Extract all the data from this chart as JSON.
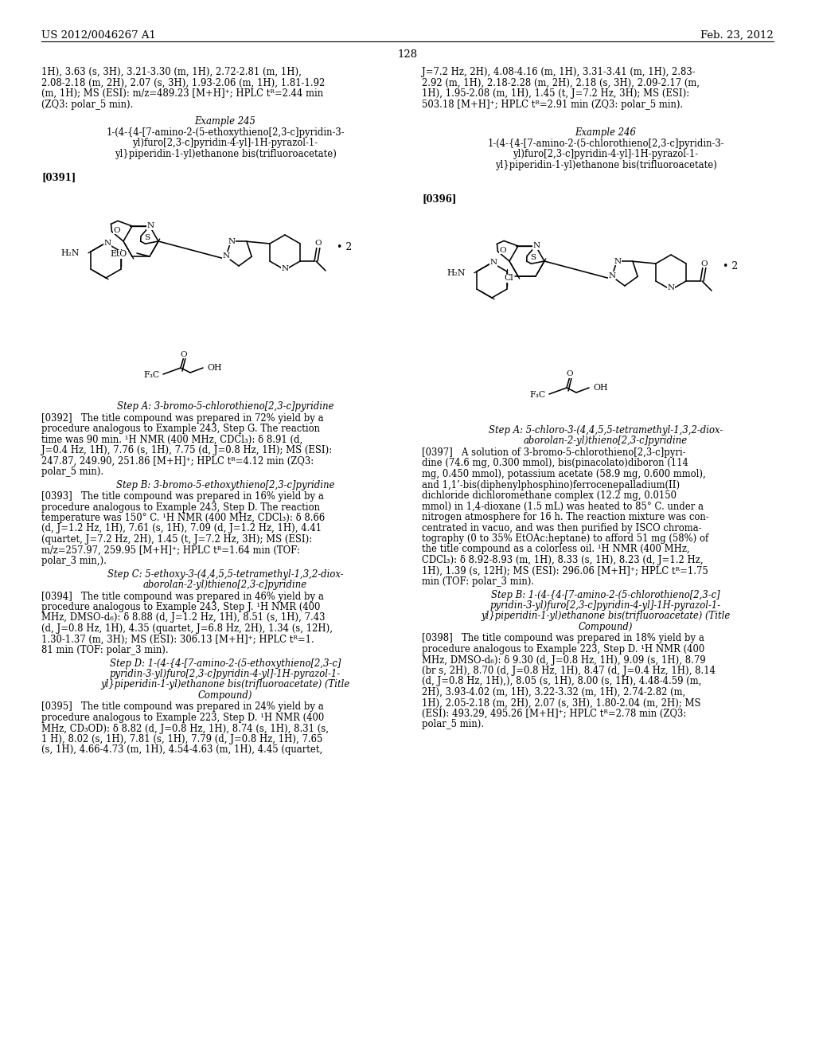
{
  "page_number": "128",
  "header_left": "US 2012/0046267 A1",
  "header_right": "Feb. 23, 2012",
  "background_color": "#ffffff",
  "top_left_text": "1H), 3.63 (s, 3H), 3.21-3.30 (m, 1H), 2.72-2.81 (m, 1H),\n2.08-2.18 (m, 2H), 2.07 (s, 3H), 1.93-2.06 (m, 1H), 1.81-1.92\n(m, 1H); MS (ESI): m/z=489.23 [M+H]⁺; HPLC tᴿ=2.44 min\n(ZQ3: polar_5 min).",
  "top_right_text": "J=7.2 Hz, 2H), 4.08-4.16 (m, 1H), 3.31-3.41 (m, 1H), 2.83-\n2.92 (m, 1H), 2.18-2.28 (m, 2H), 2.18 (s, 3H), 2.09-2.17 (m,\n1H), 1.95-2.08 (m, 1H), 1.45 (t, J=7.2 Hz, 3H); MS (ESI):\n503.18 [M+H]⁺; HPLC tᴿ=2.91 min (ZQ3: polar_5 min).",
  "example245_title": "Example 245",
  "example245_compound": "1-(4-{4-[7-amino-2-(5-ethoxythieno[2,3-c]pyridin-3-\nyl)furo[2,3-c]pyridin-4-yl]-1H-pyrazol-1-\nyl}piperidin-1-yl)ethanone bis(trifluoroacetate)",
  "example246_title": "Example 246",
  "example246_compound": "1-(4-{4-[7-amino-2-(5-chlorothieno[2,3-c]pyridin-3-\nyl)furo[2,3-c]pyridin-4-yl]-1H-pyrazol-1-\nyl}piperidin-1-yl)ethanone bis(trifluoroacetate)",
  "para0391": "[0391]",
  "para0396": "[0396]",
  "stepA_left_title": "Step A: 3-bromo-5-chlorothieno[2,3-c]pyridine",
  "stepA_left_text": "[0392]   The title compound was prepared in 72% yield by a\nprocedure analogous to Example 243, Step G. The reaction\ntime was 90 min. ¹H NMR (400 MHz, CDCl₃): δ 8.91 (d,\nJ=0.4 Hz, 1H), 7.76 (s, 1H), 7.75 (d, J=0.8 Hz, 1H); MS (ESI):\n247.87, 249.90, 251.86 [M+H]⁺; HPLC tᴿ=4.12 min (ZQ3:\npolar_5 min).",
  "stepB_left_title": "Step B: 3-bromo-5-ethoxythieno[2,3-c]pyridine",
  "stepB_left_text": "[0393]   The title compound was prepared in 16% yield by a\nprocedure analogous to Example 243, Step D. The reaction\ntemperature was 150° C. ¹H NMR (400 MHz, CDCl₃): δ 8.66\n(d, J=1.2 Hz, 1H), 7.61 (s, 1H), 7.09 (d, J=1.2 Hz, 1H), 4.41\n(quartet, J=7.2 Hz, 2H), 1.45 (t, J=7.2 Hz, 3H); MS (ESI):\nm/z=257.97, 259.95 [M+H]⁺; HPLC tᴿ=1.64 min (TOF:\npolar_3 min,).",
  "stepC_left_title_line1": "Step C: 5-ethoxy-3-(4,4,5,5-tetramethyl-1,3,2-diox-",
  "stepC_left_title_line2": "aborolan-2-yl)thieno[2,3-c]pyridine",
  "stepC_left_text": "[0394]   The title compound was prepared in 46% yield by a\nprocedure analogous to Example 243, Step J. ¹H NMR (400\nMHz, DMSO-d₆): δ 8.88 (d, J=1.2 Hz, 1H), 8.51 (s, 1H), 7.43\n(d, J=0.8 Hz, 1H), 4.35 (quartet, J=6.8 Hz, 2H), 1.34 (s, 12H),\n1.30-1.37 (m, 3H); MS (ESI): 306.13 [M+H]⁺; HPLC tᴿ=1.\n81 min (TOF: polar_3 min).",
  "stepD_left_title_lines": [
    "Step D: 1-(4-{4-[7-amino-2-(5-ethoxythieno[2,3-c]",
    "pyridin-3-yl)furo[2,3-c]pyridin-4-yl]-1H-pyrazol-1-",
    "yl}piperidin-1-yl)ethanone bis(trifluoroacetate) (Title",
    "Compound)"
  ],
  "stepD_left_text": "[0395]   The title compound was prepared in 24% yield by a\nprocedure analogous to Example 223, Step D. ¹H NMR (400\nMHz, CD₃OD): δ 8.82 (d, J=0.8 Hz, 1H), 8.74 (s, 1H), 8.31 (s,\n1 H), 8.02 (s, 1H), 7.81 (s, 1H), 7.79 (d, J=0.8 Hz, 1H), 7.65\n(s, 1H), 4.66-4.73 (m, 1H), 4.54-4.63 (m, 1H), 4.45 (quartet,",
  "stepA_right_title_line1": "Step A: 5-chloro-3-(4,4,5,5-tetramethyl-1,3,2-diox-",
  "stepA_right_title_line2": "aborolan-2-yl)thieno[2,3-c]pyridine",
  "stepA_right_text": "[0397]   A solution of 3-bromo-5-chlorothieno[2,3-c]pyri-\ndine (74.6 mg, 0.300 mmol), bis(pinacolato)diboron (114\nmg, 0.450 mmol), potassium acetate (58.9 mg, 0.600 mmol),\nand 1,1’-bis(diphenylphosphino)ferrocenepalladium(II)\ndichloride dichloromethane complex (12.2 mg, 0.0150\nmmol) in 1,4-dioxane (1.5 mL) was heated to 85° C. under a\nnitrogen atmosphere for 16 h. The reaction mixture was con-\ncentrated in vacuo, and was then purified by ISCO chroma-\ntography (0 to 35% EtOAc:heptane) to afford 51 mg (58%) of\nthe title compound as a colorless oil. ¹H NMR (400 MHz,\nCDCl₃): δ 8.92-8.93 (m, 1H), 8.33 (s, 1H), 8.23 (d, J=1.2 Hz,\n1H), 1.39 (s, 12H); MS (ESI): 296.06 [M+H]⁺; HPLC tᴿ=1.75\nmin (TOF: polar_3 min).",
  "stepB_right_title_lines": [
    "Step B: 1-(4-{4-[7-amino-2-(5-chlorothieno[2,3-c]",
    "pyridin-3-yl)furo[2,3-c]pyridin-4-yl]-1H-pyrazol-1-",
    "yl}piperidin-1-yl)ethanone bis(trifluoroacetate) (Title",
    "Compound)"
  ],
  "stepB_right_text": "[0398]   The title compound was prepared in 18% yield by a\nprocedure analogous to Example 223, Step D. ¹H NMR (400\nMHz, DMSO-d₆): δ 9.30 (d, J=0.8 Hz, 1H), 9.09 (s, 1H), 8.79\n(br s, 2H), 8.70 (d, J=0.8 Hz, 1H), 8.47 (d, J=0.4 Hz, 1H), 8.14\n(d, J=0.8 Hz, 1H),), 8.05 (s, 1H), 8.00 (s, 1H), 4.48-4.59 (m,\n2H), 3.93-4.02 (m, 1H), 3.22-3.32 (m, 1H), 2.74-2.82 (m,\n1H), 2.05-2.18 (m, 2H), 2.07 (s, 3H), 1.80-2.04 (m, 2H); MS\n(ESI): 493.29, 495.26 [M+H]⁺; HPLC tᴿ=2.78 min (ZQ3:\npolar_5 min)."
}
